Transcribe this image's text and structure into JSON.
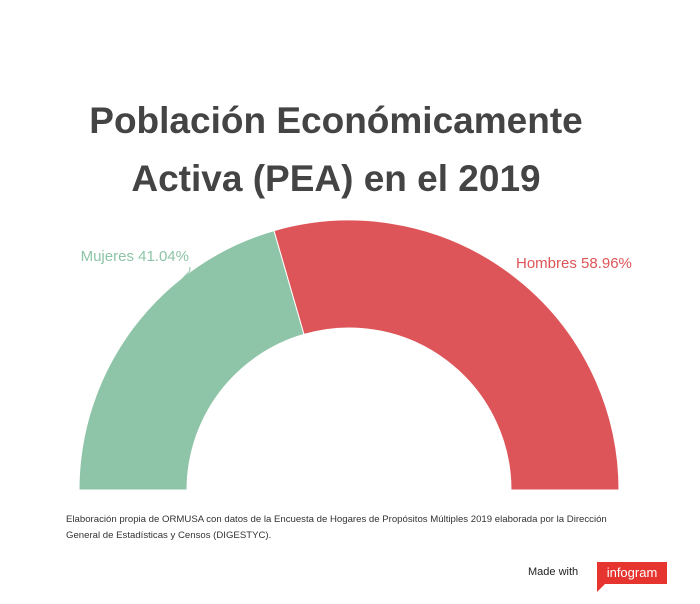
{
  "title_lines": [
    "Población Económicamente",
    "Activa (PEA) en el 2019"
  ],
  "chart_data": {
    "type": "pie",
    "variant": "semi-donut",
    "title": "Población Económicamente Activa (PEA) en el 2019",
    "slices": [
      {
        "label": "Mujeres",
        "value": 41.04,
        "display": "Mujeres 41.04%",
        "color": "#8ec4a7"
      },
      {
        "label": "Hombres",
        "value": 58.96,
        "display": "Hombres 58.96%",
        "color": "#dd5558"
      }
    ]
  },
  "source": "Elaboración propia de ORMUSA con datos de la Encuesta de Hogares de Propósitos Múltiples 2019  elaborada por la Dirección General de Estadísticas y Censos (DIGESTYC).",
  "footer": {
    "made_with": "Made with",
    "brand": "infogram"
  },
  "colors": {
    "title": "#444444",
    "brand": "#e5352e"
  }
}
